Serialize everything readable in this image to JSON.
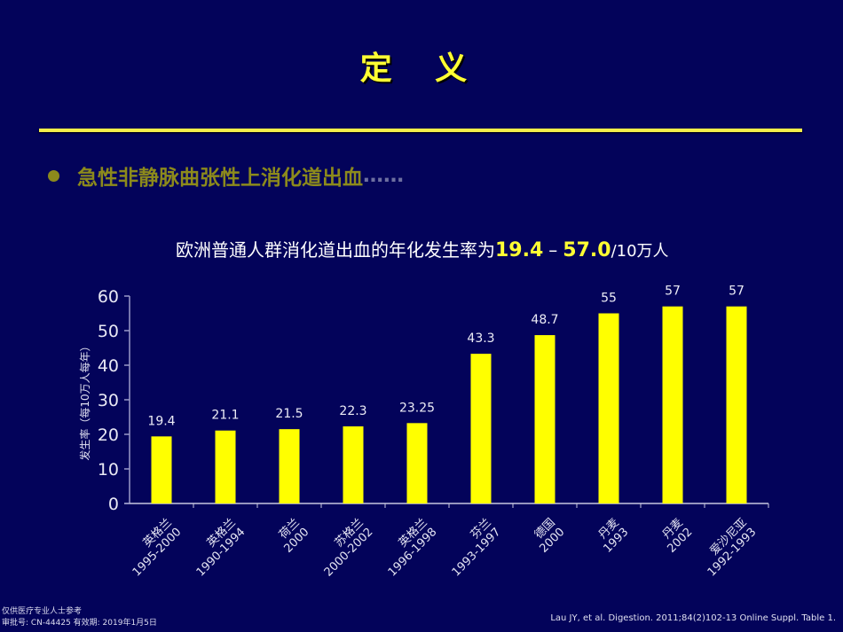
{
  "slide": {
    "title": "定 义",
    "bullet": "急性非静脉曲张性上消化道出血",
    "bullet_ellipsis": "……",
    "subtitle_prefix": "欧洲普通人群消化道出血的年化发生率为",
    "subtitle_low": "19.4",
    "subtitle_dash": "–",
    "subtitle_high": "57.0",
    "subtitle_unit": "/10万人",
    "footer_line1": "仅供医疗专业人士参考",
    "footer_line2": "审批号: CN-44425 有效期: 2019年1月5日",
    "citation": "Lau JY, et al. Digestion. 2011;84(2)102-13 Online Suppl. Table 1."
  },
  "colors": {
    "background": "#03035a",
    "bar": "#ffff00",
    "accent": "#ffff33",
    "axis": "#9a9ac8"
  },
  "chart_data": {
    "type": "bar",
    "title": "欧洲普通人群消化道出血的年化发生率为19.4 – 57.0/10万人",
    "xlabel": "",
    "ylabel": "发生率（每10万人每年）",
    "ylim": [
      0,
      60
    ],
    "yticks": [
      0,
      10,
      20,
      30,
      40,
      50,
      60
    ],
    "grid": false,
    "legend": "none",
    "categories": [
      {
        "country": "英格兰",
        "period": "1995-2000"
      },
      {
        "country": "英格兰",
        "period": "1990-1994"
      },
      {
        "country": "荷兰",
        "period": "2000"
      },
      {
        "country": "苏格兰",
        "period": "2000-2002"
      },
      {
        "country": "英格兰",
        "period": "1996-1998"
      },
      {
        "country": "芬兰",
        "period": "1993-1997"
      },
      {
        "country": "德国",
        "period": "2000"
      },
      {
        "country": "丹麦",
        "period": "1993"
      },
      {
        "country": "丹麦",
        "period": "2002"
      },
      {
        "country": "爱沙尼亚",
        "period": "1992-1993"
      }
    ],
    "values": [
      19.4,
      21.1,
      21.5,
      22.3,
      23.25,
      43.3,
      48.7,
      55,
      57,
      57
    ],
    "value_labels": [
      "19.4",
      "21.1",
      "21.5",
      "22.3",
      "23.25",
      "43.3",
      "48.7",
      "55",
      "57",
      "57"
    ]
  }
}
